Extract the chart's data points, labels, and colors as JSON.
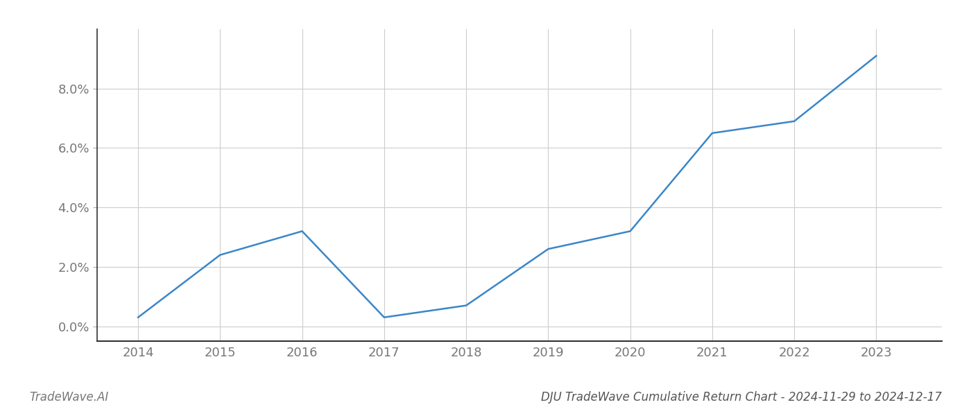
{
  "x_values": [
    2014,
    2015,
    2016,
    2017,
    2018,
    2019,
    2020,
    2021,
    2022,
    2023
  ],
  "y_values": [
    0.003,
    0.024,
    0.032,
    0.003,
    0.007,
    0.026,
    0.032,
    0.065,
    0.069,
    0.091
  ],
  "line_color": "#3a86c8",
  "line_width": 1.8,
  "title": "DJU TradeWave Cumulative Return Chart - 2024-11-29 to 2024-12-17",
  "watermark": "TradeWave.AI",
  "xlim": [
    2013.5,
    2023.8
  ],
  "ylim": [
    -0.005,
    0.1
  ],
  "yticks": [
    0.0,
    0.02,
    0.04,
    0.06,
    0.08
  ],
  "xticks": [
    2014,
    2015,
    2016,
    2017,
    2018,
    2019,
    2020,
    2021,
    2022,
    2023
  ],
  "background_color": "#ffffff",
  "grid_color": "#cccccc",
  "tick_label_color": "#777777",
  "title_color": "#555555",
  "watermark_color": "#777777",
  "title_fontsize": 12,
  "tick_fontsize": 13,
  "watermark_fontsize": 12
}
